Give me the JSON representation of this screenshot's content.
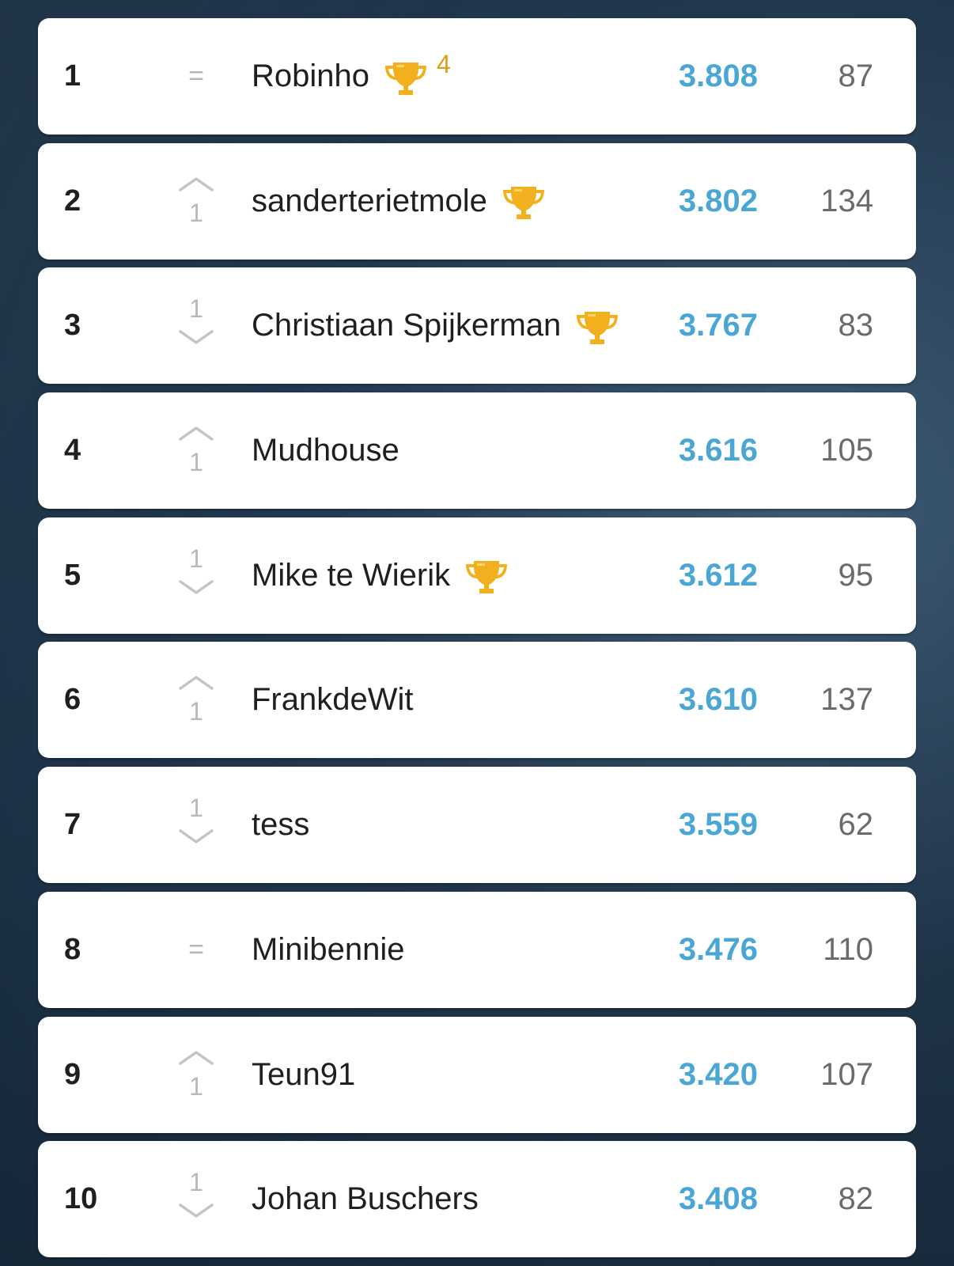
{
  "leaderboard": {
    "rows": [
      {
        "rank": "1",
        "movement": "same",
        "movement_symbol": "=",
        "movement_amount": "",
        "name": "Robinho",
        "trophy": true,
        "trophy_count": "4",
        "points": "3.808",
        "count": "87"
      },
      {
        "rank": "2",
        "movement": "up",
        "movement_symbol": "",
        "movement_amount": "1",
        "name": "sanderterietmole",
        "trophy": true,
        "trophy_count": "",
        "points": "3.802",
        "count": "134"
      },
      {
        "rank": "3",
        "movement": "down",
        "movement_symbol": "",
        "movement_amount": "1",
        "name": "Christiaan Spijkerman",
        "trophy": true,
        "trophy_count": "",
        "points": "3.767",
        "count": "83"
      },
      {
        "rank": "4",
        "movement": "up",
        "movement_symbol": "",
        "movement_amount": "1",
        "name": "Mudhouse",
        "trophy": false,
        "trophy_count": "",
        "points": "3.616",
        "count": "105"
      },
      {
        "rank": "5",
        "movement": "down",
        "movement_symbol": "",
        "movement_amount": "1",
        "name": "Mike te Wierik",
        "trophy": true,
        "trophy_count": "",
        "points": "3.612",
        "count": "95"
      },
      {
        "rank": "6",
        "movement": "up",
        "movement_symbol": "",
        "movement_amount": "1",
        "name": "FrankdeWit",
        "trophy": false,
        "trophy_count": "",
        "points": "3.610",
        "count": "137"
      },
      {
        "rank": "7",
        "movement": "down",
        "movement_symbol": "",
        "movement_amount": "1",
        "name": "tess",
        "trophy": false,
        "trophy_count": "",
        "points": "3.559",
        "count": "62"
      },
      {
        "rank": "8",
        "movement": "same",
        "movement_symbol": "=",
        "movement_amount": "",
        "name": "Minibennie",
        "trophy": false,
        "trophy_count": "",
        "points": "3.476",
        "count": "110"
      },
      {
        "rank": "9",
        "movement": "up",
        "movement_symbol": "",
        "movement_amount": "1",
        "name": "Teun91",
        "trophy": false,
        "trophy_count": "",
        "points": "3.420",
        "count": "107"
      },
      {
        "rank": "10",
        "movement": "down",
        "movement_symbol": "",
        "movement_amount": "1",
        "name": "Johan Buschers",
        "trophy": false,
        "trophy_count": "",
        "points": "3.408",
        "count": "82"
      }
    ]
  },
  "icons": {
    "trophy": "trophy-icon",
    "up": "chevron-up-icon",
    "down": "chevron-down-icon",
    "same": "equals-icon"
  },
  "colors": {
    "points": "#4aa6d4",
    "trophy": "#f2b01e",
    "movement": "#b8b8b8",
    "background": "#22384e"
  }
}
